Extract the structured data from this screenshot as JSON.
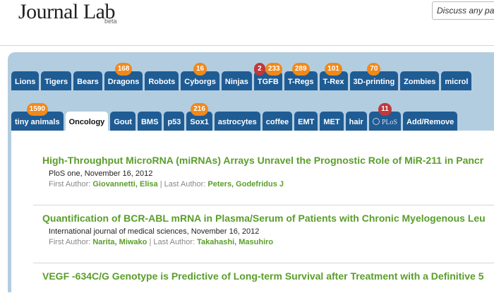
{
  "header": {
    "logo": "Journal Lab",
    "beta": "beta",
    "search_placeholder": "Discuss any pa"
  },
  "tabs": {
    "row1": [
      {
        "label": "Lions"
      },
      {
        "label": "Tigers"
      },
      {
        "label": "Bears"
      },
      {
        "label": "Dragons",
        "badges": [
          {
            "value": 168,
            "color": "#f0891a"
          }
        ]
      },
      {
        "label": "Robots"
      },
      {
        "label": "Cyborgs",
        "badges": [
          {
            "value": 16,
            "color": "#f0891a"
          }
        ]
      },
      {
        "label": "Ninjas"
      },
      {
        "label": "TGFB",
        "badges": [
          {
            "value": 2,
            "color": "#c0393b"
          },
          {
            "value": 233,
            "color": "#f0891a"
          }
        ]
      },
      {
        "label": "T-Regs",
        "badges": [
          {
            "value": 289,
            "color": "#f0891a"
          }
        ]
      },
      {
        "label": "T-Rex",
        "badges": [
          {
            "value": 101,
            "color": "#f0891a"
          }
        ]
      },
      {
        "label": "3D-printing",
        "badges": [
          {
            "value": 70,
            "color": "#f0891a"
          }
        ]
      },
      {
        "label": "Zombies"
      },
      {
        "label": "microl"
      }
    ],
    "row2": [
      {
        "label": "tiny animals",
        "badges": [
          {
            "value": 1590,
            "color": "#f0891a"
          }
        ]
      },
      {
        "label": "Oncology",
        "active": true
      },
      {
        "label": "Gout"
      },
      {
        "label": "BMS"
      },
      {
        "label": "p53"
      },
      {
        "label": "Sox1",
        "badges": [
          {
            "value": 216,
            "color": "#f0891a"
          }
        ]
      },
      {
        "label": "astrocytes"
      },
      {
        "label": "coffee"
      },
      {
        "label": "EMT"
      },
      {
        "label": "MET"
      },
      {
        "label": "hair"
      },
      {
        "label": "PLoS",
        "icon": true,
        "badges": [
          {
            "value": 11,
            "color": "#c0393b"
          }
        ]
      },
      {
        "label": "Add/Remove"
      }
    ]
  },
  "articles": [
    {
      "title": "High-Throughput MicroRNA (miRNAs) Arrays Unravel the Prognostic Role of MiR-211 in Pancr",
      "journal": "PloS one, November 16, 2012",
      "first_author_label": "First Author:",
      "first_author": "Giovannetti, Elisa",
      "last_author_label": "| Last Author:",
      "last_author": "Peters, Godefridus J"
    },
    {
      "title": "Quantification of BCR-ABL mRNA in Plasma/Serum of Patients with Chronic Myelogenous Leu",
      "journal": "International journal of medical sciences, November 16, 2012",
      "first_author_label": "First Author:",
      "first_author": "Narita, Miwako",
      "last_author_label": "| Last Author:",
      "last_author": "Takahashi, Masuhiro"
    },
    {
      "title": "VEGF -634C/G Genotype is Predictive of Long-term Survival after Treatment with a Definitive 5"
    }
  ]
}
